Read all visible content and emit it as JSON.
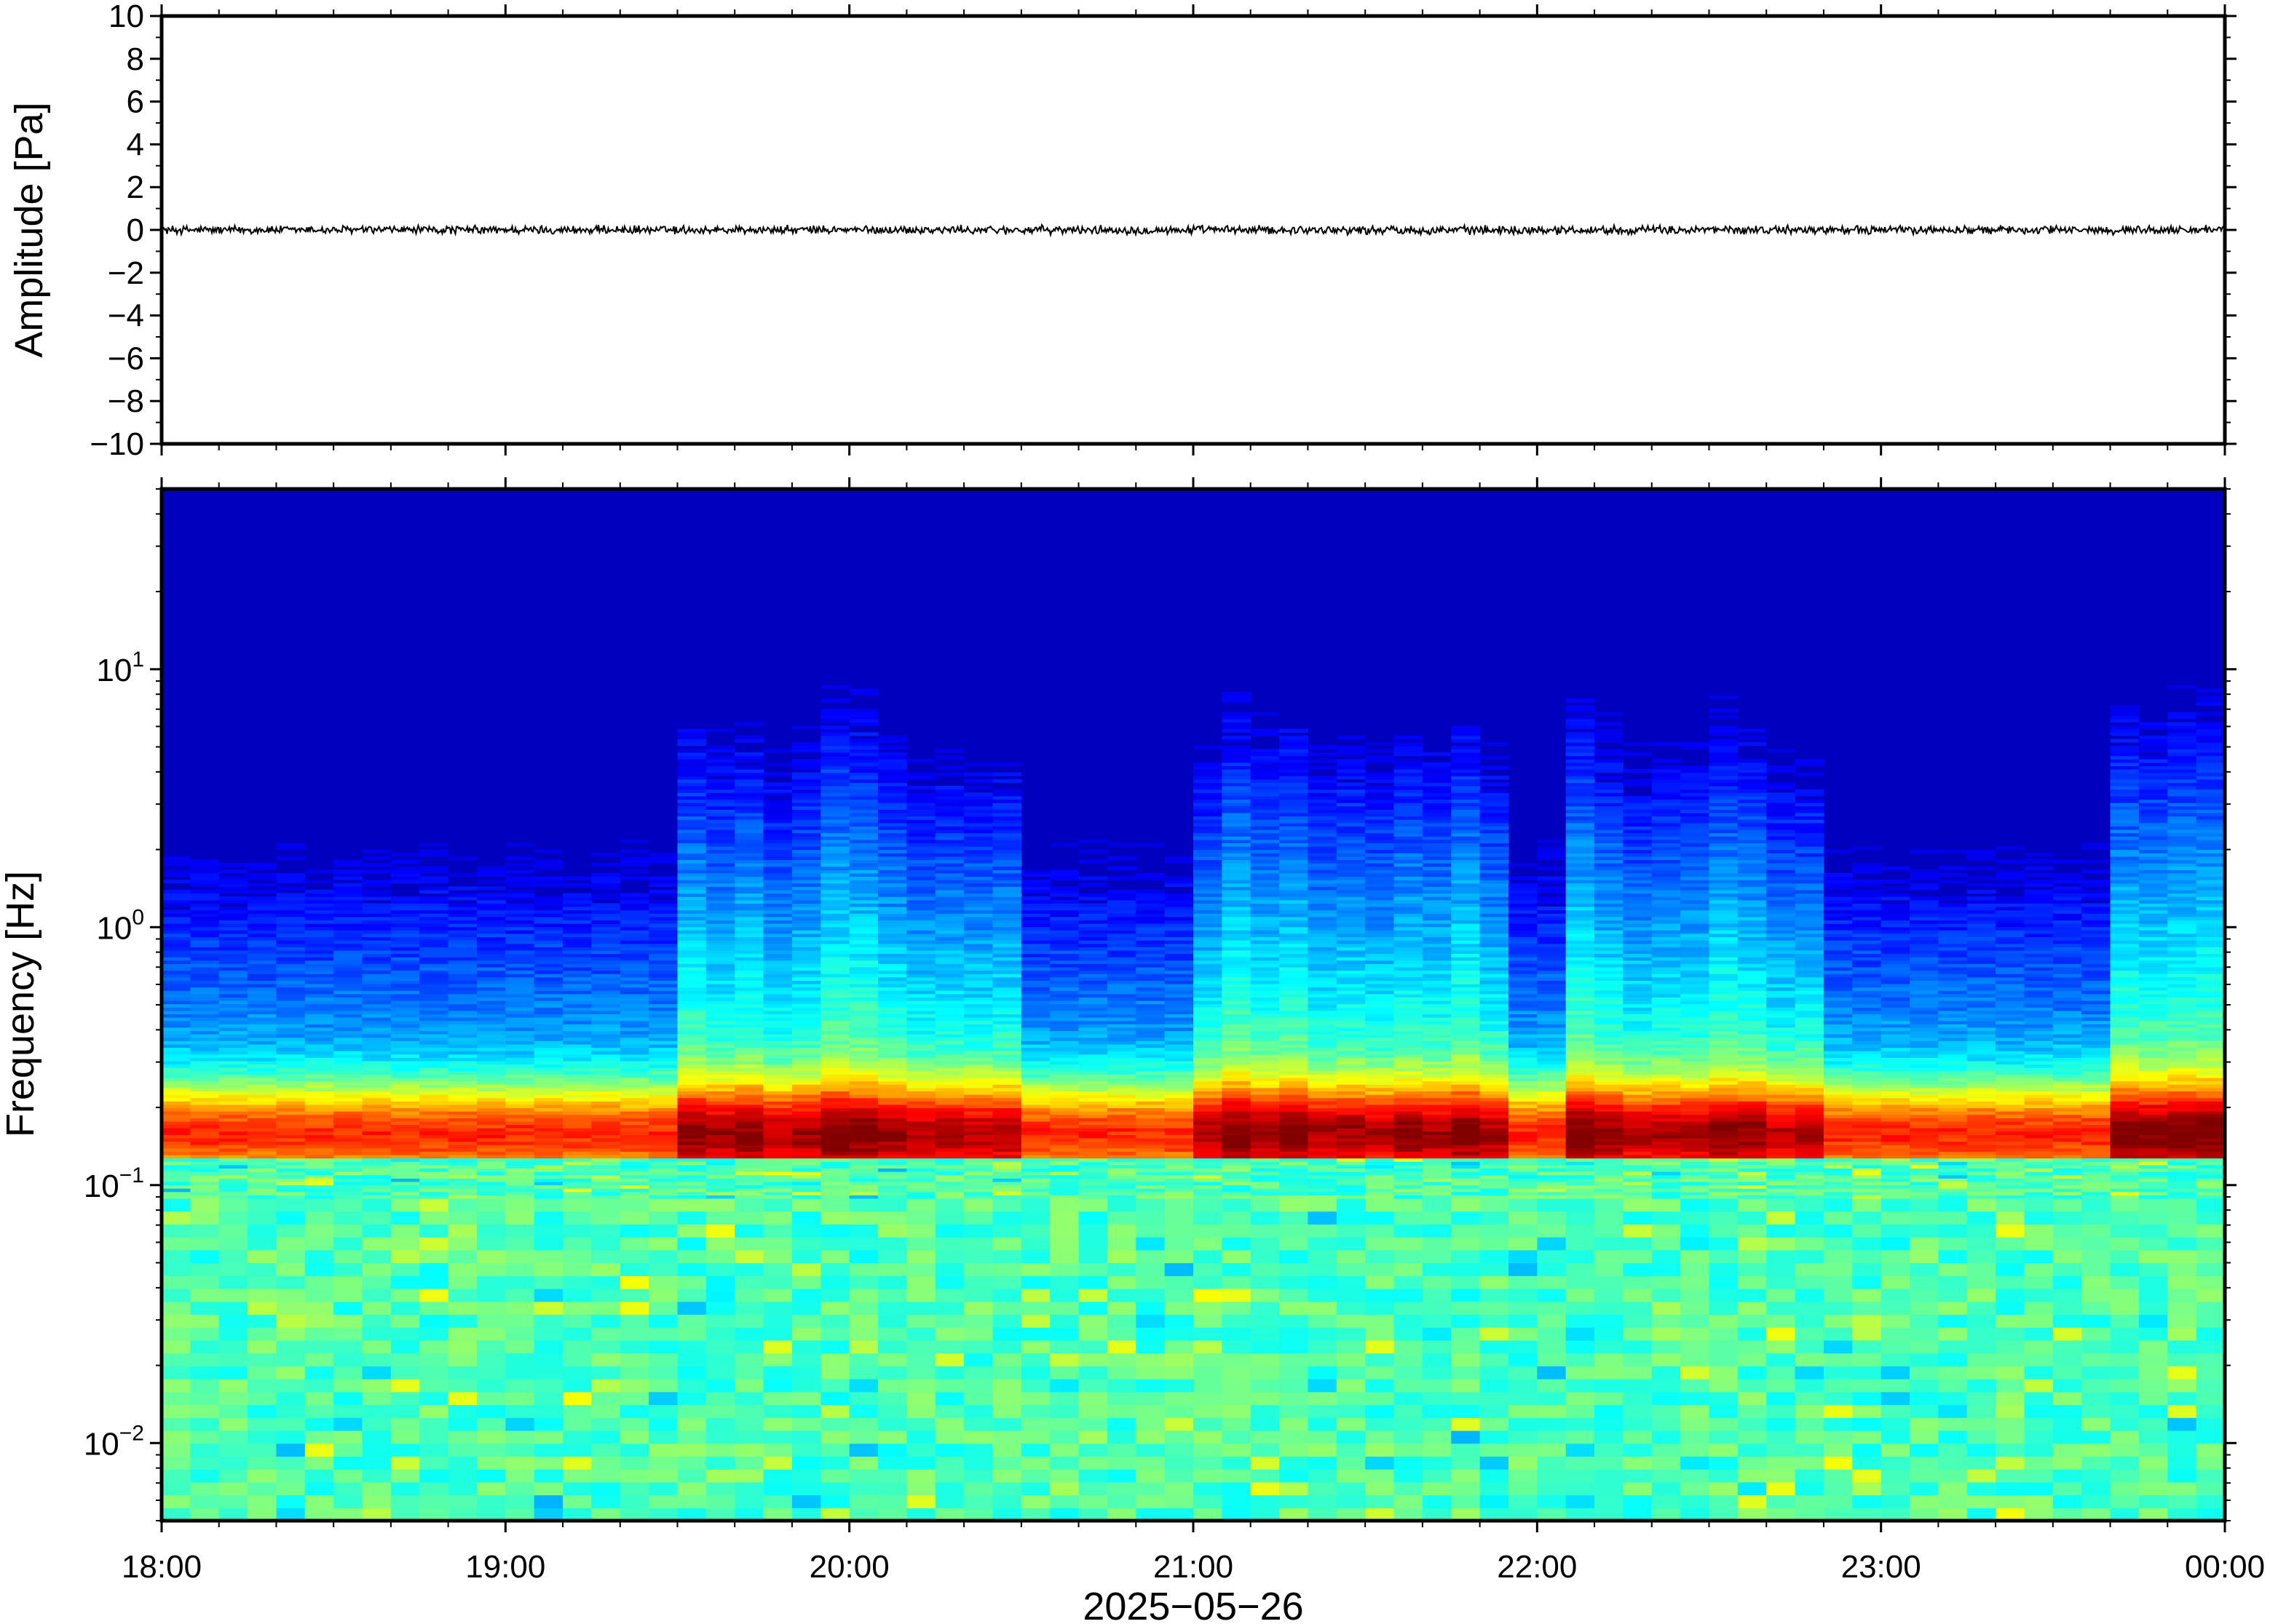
{
  "chart_data": [
    {
      "type": "line",
      "panel": "waveform",
      "ylabel": "Amplitude [Pa]",
      "ylim": [
        -10,
        10
      ],
      "yticks": [
        10,
        8,
        6,
        4,
        2,
        0,
        -2,
        -4,
        -6,
        -8,
        -10
      ],
      "ytick_labels": [
        "10",
        "8",
        "6",
        "4",
        "2",
        "0",
        "−2",
        "−4",
        "−6",
        "−8",
        "−10"
      ],
      "xlim": [
        "2025-05-26 18:00",
        "2025-05-27 00:00"
      ],
      "series": [
        {
          "noise_amplitude": 0.15,
          "mean": 0,
          "color": "#000000"
        }
      ]
    },
    {
      "type": "heatmap",
      "panel": "spectrogram",
      "ylabel": "Frequency [Hz]",
      "yscale": "log",
      "ylim": [
        0.005,
        50
      ],
      "yticks": [
        0.01,
        0.1,
        1,
        10
      ],
      "ytick_labels": [
        {
          "base": "10",
          "exp": "−2"
        },
        {
          "base": "10",
          "exp": "−1"
        },
        {
          "base": "10",
          "exp": "0"
        },
        {
          "base": "10",
          "exp": "1"
        }
      ],
      "xlabel": "2025−05−26",
      "xlim": [
        "2025-05-26 18:00",
        "2025-05-27 00:00"
      ],
      "xtick_labels": [
        "18:00",
        "19:00",
        "20:00",
        "21:00",
        "22:00",
        "23:00",
        "00:00"
      ],
      "colormap": "jet",
      "microseism_peak_hz": 0.16,
      "noise_bursts": [
        {
          "start": "19:30",
          "end": "20:30",
          "top_hz": 12
        },
        {
          "start": "21:00",
          "end": "21:55",
          "top_hz": 8
        },
        {
          "start": "22:05",
          "end": "22:50",
          "top_hz": 11
        },
        {
          "start": "23:40",
          "end": "00:00",
          "top_hz": 10
        }
      ],
      "colors": [
        "#00008f",
        "#0000ff",
        "#00ffff",
        "#ffff00",
        "#ff0000",
        "#800000"
      ]
    }
  ]
}
